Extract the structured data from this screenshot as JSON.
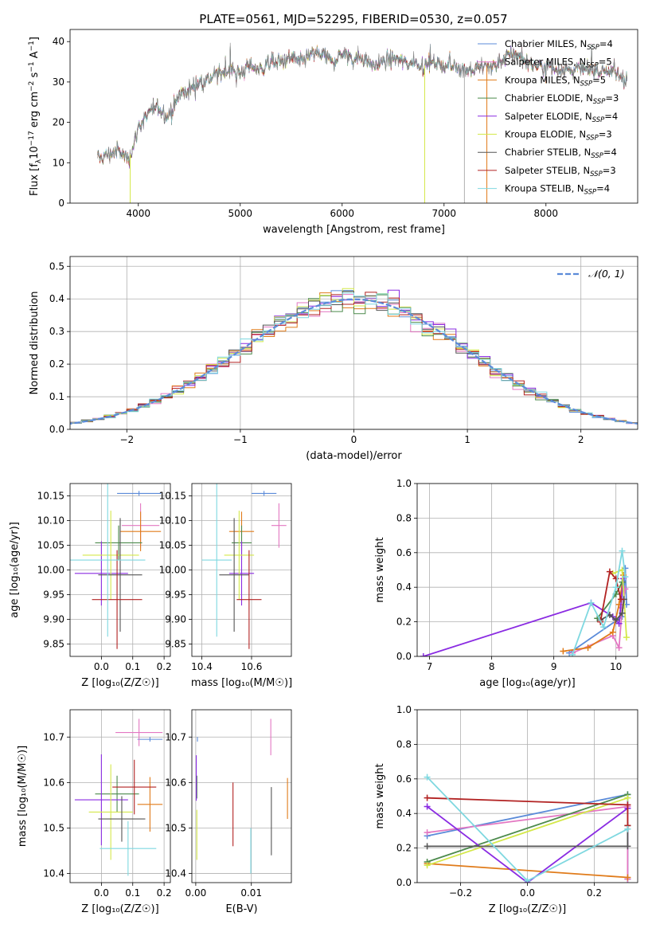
{
  "figure_title": "PLATE=0561, MJD=52295, FIBERID=0530, z=0.057",
  "colors": {
    "Chabrier MILES": "#5b8bd9",
    "Salpeter MILES": "#e377c2",
    "Kroupa MILES": "#e07b1a",
    "Chabrier ELODIE": "#4c8a4c",
    "Salpeter ELODIE": "#8a2be2",
    "Kroupa ELODIE": "#d4e84a",
    "Chabrier STELIB": "#555555",
    "Salpeter STELIB": "#b22222",
    "Kroupa STELIB": "#7fd8e0",
    "normal": "#5b8bd9"
  },
  "chart_data": [
    {
      "id": "spectrum",
      "type": "line",
      "title": "PLATE=0561, MJD=52295, FIBERID=0530, z=0.057",
      "xlabel": "wavelength [Angstrom, rest frame]",
      "ylabel_parts": [
        "Flux [f",
        "λ",
        "10",
        "−17",
        " erg cm",
        "−2",
        " s",
        "−1",
        " A",
        "−1",
        "]"
      ],
      "xlim": [
        3330,
        8900
      ],
      "ylim": [
        0,
        43
      ],
      "xticks": [
        4000,
        5000,
        6000,
        7000,
        8000
      ],
      "yticks": [
        0,
        10,
        20,
        30,
        40
      ],
      "legend_position": "upper right",
      "legend": [
        {
          "label": "Chabrier MILES, N",
          "sub": "SSP",
          "suffix": "=4"
        },
        {
          "label": "Salpeter MILES, N",
          "sub": "SSP",
          "suffix": "=5"
        },
        {
          "label": "Kroupa MILES, N",
          "sub": "SSP",
          "suffix": "=5"
        },
        {
          "label": "Chabrier ELODIE, N",
          "sub": "SSP",
          "suffix": "=3"
        },
        {
          "label": "Salpeter ELODIE, N",
          "sub": "SSP",
          "suffix": "=4"
        },
        {
          "label": "Kroupa ELODIE, N",
          "sub": "SSP",
          "suffix": "=3"
        },
        {
          "label": "Chabrier STELIB, N",
          "sub": "SSP",
          "suffix": "=4"
        },
        {
          "label": "Salpeter STELIB, N",
          "sub": "SSP",
          "suffix": "=3"
        },
        {
          "label": "Kroupa STELIB, N",
          "sub": "SSP",
          "suffix": "=4"
        }
      ],
      "continuum": {
        "wavelength": [
          3600,
          3700,
          3800,
          3900,
          3950,
          4000,
          4100,
          4200,
          4300,
          4400,
          4500,
          4600,
          4700,
          4800,
          4900,
          5000,
          5100,
          5200,
          5300,
          5400,
          5500,
          5600,
          5700,
          5800,
          5900,
          6000,
          6100,
          6200,
          6300,
          6400,
          6500,
          6600,
          6700,
          6800,
          6900,
          7000,
          7100,
          7200,
          7300,
          7400,
          7500,
          7600,
          7700,
          7800,
          7900,
          8000,
          8100,
          8200,
          8300,
          8400,
          8500,
          8600,
          8700,
          8800
        ],
        "flux": [
          11,
          12,
          13,
          11,
          14,
          19,
          22,
          24,
          21,
          27,
          28,
          30,
          31,
          32,
          33,
          32,
          34,
          33,
          35,
          35,
          36,
          35,
          37,
          37,
          35,
          37,
          36,
          36,
          34,
          35,
          36,
          35,
          35,
          34,
          35,
          34,
          34,
          33,
          33,
          34,
          34,
          36,
          37,
          35,
          34,
          34,
          33,
          33,
          33,
          33,
          33,
          33,
          32,
          31
        ]
      },
      "dropouts": [
        {
          "x": 3920,
          "y": 0
        },
        {
          "x": 6810,
          "y": 0
        },
        {
          "x": 7200,
          "y": 0
        },
        {
          "x": 7420,
          "y": 0
        }
      ]
    },
    {
      "id": "residuals",
      "type": "histogram",
      "xlabel": "(data-model)/error",
      "ylabel": "Normed distribution",
      "xlim": [
        -2.5,
        2.5
      ],
      "ylim": [
        0,
        0.53
      ],
      "xticks": [
        -2,
        -1,
        0,
        1,
        2
      ],
      "yticks": [
        0,
        0.1,
        0.2,
        0.3,
        0.4,
        0.5
      ],
      "grid": true,
      "legend_position": "upper right",
      "legend_label": "𝒩(0, 1)",
      "bin_width": 0.1
    },
    {
      "id": "age_vs_Z",
      "type": "errorbar",
      "xlabel": "Z [log₁₀(Z/Z☉)]",
      "ylabel": "age  [log₁₀(age/yr)]",
      "xlim": [
        -0.1,
        0.22
      ],
      "ylim": [
        9.825,
        10.175
      ],
      "xticks": [
        0.0,
        0.1,
        0.2
      ],
      "yticks": [
        9.85,
        9.9,
        9.95,
        10.0,
        10.05,
        10.1,
        10.15
      ],
      "grid": true,
      "points": [
        {
          "series": "Chabrier MILES",
          "x": 0.12,
          "xerr": 0.07,
          "y": 10.155,
          "yerr": 0.005
        },
        {
          "series": "Salpeter MILES",
          "x": 0.125,
          "xerr": 0.06,
          "y": 10.09,
          "yerr": 0.045
        },
        {
          "series": "Kroupa MILES",
          "x": 0.125,
          "xerr": 0.065,
          "y": 10.078,
          "yerr": 0.04
        },
        {
          "series": "Chabrier ELODIE",
          "x": 0.055,
          "xerr": 0.075,
          "y": 10.055,
          "yerr": 0.035
        },
        {
          "series": "Salpeter ELODIE",
          "x": 0.0,
          "xerr": 0.085,
          "y": 9.993,
          "yerr": 0.065
        },
        {
          "series": "Kroupa ELODIE",
          "x": 0.03,
          "xerr": 0.09,
          "y": 10.03,
          "yerr": 0.09
        },
        {
          "series": "Chabrier STELIB",
          "x": 0.06,
          "xerr": 0.07,
          "y": 9.99,
          "yerr": 0.115
        },
        {
          "series": "Salpeter STELIB",
          "x": 0.05,
          "xerr": 0.08,
          "y": 9.94,
          "yerr": 0.1
        },
        {
          "series": "Kroupa STELIB",
          "x": 0.02,
          "xerr": 0.12,
          "y": 10.02,
          "yerr": 0.155
        }
      ]
    },
    {
      "id": "age_vs_mass",
      "type": "errorbar",
      "xlabel": "mass [log₁₀(M/M☉)]",
      "xlim": [
        10.36,
        10.76
      ],
      "ylim": [
        9.825,
        10.175
      ],
      "xticks": [
        10.4,
        10.6
      ],
      "yticks": [
        9.85,
        9.9,
        9.95,
        10.0,
        10.05,
        10.1,
        10.15
      ],
      "grid": true,
      "points": [
        {
          "series": "Chabrier MILES",
          "x": 10.65,
          "xerr": 0.05,
          "y": 10.155,
          "yerr": 0.005
        },
        {
          "series": "Salpeter MILES",
          "x": 10.71,
          "xerr": 0.03,
          "y": 10.09,
          "yerr": 0.045
        },
        {
          "series": "Kroupa MILES",
          "x": 10.56,
          "xerr": 0.05,
          "y": 10.078,
          "yerr": 0.04
        },
        {
          "series": "Chabrier ELODIE",
          "x": 10.56,
          "xerr": 0.04,
          "y": 10.055,
          "yerr": 0.035
        },
        {
          "series": "Salpeter ELODIE",
          "x": 10.56,
          "xerr": 0.05,
          "y": 9.993,
          "yerr": 0.065
        },
        {
          "series": "Kroupa ELODIE",
          "x": 10.55,
          "xerr": 0.06,
          "y": 10.03,
          "yerr": 0.09
        },
        {
          "series": "Chabrier STELIB",
          "x": 10.53,
          "xerr": 0.06,
          "y": 9.99,
          "yerr": 0.115
        },
        {
          "series": "Salpeter STELIB",
          "x": 10.59,
          "xerr": 0.05,
          "y": 9.94,
          "yerr": 0.1
        },
        {
          "series": "Kroupa STELIB",
          "x": 10.46,
          "xerr": 0.06,
          "y": 10.02,
          "yerr": 0.155
        }
      ]
    },
    {
      "id": "mass_weight_vs_age",
      "type": "line",
      "xlabel": "age  [log₁₀(age/yr)]",
      "ylabel": "mass weight",
      "xlim": [
        6.8,
        10.35
      ],
      "ylim": [
        0,
        1
      ],
      "xticks": [
        7,
        8,
        9,
        10
      ],
      "yticks": [
        0,
        0.2,
        0.4,
        0.6,
        0.8,
        1.0
      ],
      "grid": true,
      "series": [
        {
          "name": "Chabrier MILES",
          "x": [
            9.25,
            10.1,
            10.15,
            10.17
          ],
          "y": [
            0.02,
            0.23,
            0.51,
            0.3
          ]
        },
        {
          "name": "Salpeter MILES",
          "x": [
            9.3,
            9.95,
            10.05,
            10.1,
            10.15
          ],
          "y": [
            0.02,
            0.12,
            0.05,
            0.28,
            0.39
          ]
        },
        {
          "name": "Kroupa MILES",
          "x": [
            9.15,
            9.55,
            9.95,
            10.05,
            10.12
          ],
          "y": [
            0.03,
            0.05,
            0.14,
            0.3,
            0.47
          ]
        },
        {
          "name": "Chabrier ELODIE",
          "x": [
            9.7,
            10.0,
            10.1
          ],
          "y": [
            0.22,
            0.36,
            0.43
          ]
        },
        {
          "name": "Salpeter ELODIE",
          "x": [
            6.9,
            9.6,
            9.95,
            10.05,
            10.12
          ],
          "y": [
            0.0,
            0.31,
            0.23,
            0.19,
            0.45
          ]
        },
        {
          "name": "Kroupa ELODIE",
          "x": [
            9.95,
            10.1,
            10.17
          ],
          "y": [
            0.48,
            0.5,
            0.11
          ]
        },
        {
          "name": "Chabrier STELIB",
          "x": [
            9.75,
            9.9,
            10.0,
            10.1,
            10.13
          ],
          "y": [
            0.21,
            0.24,
            0.21,
            0.25,
            0.33
          ]
        },
        {
          "name": "Salpeter STELIB",
          "x": [
            9.75,
            9.9,
            10.0,
            10.08
          ],
          "y": [
            0.2,
            0.49,
            0.45,
            0.33
          ]
        },
        {
          "name": "Kroupa STELIB",
          "x": [
            9.3,
            9.6,
            9.8,
            10.0,
            10.1,
            10.15
          ],
          "y": [
            0.01,
            0.31,
            0.17,
            0.4,
            0.61,
            0.46
          ]
        }
      ]
    },
    {
      "id": "mass_vs_Z",
      "type": "errorbar",
      "xlabel": "Z [log₁₀(Z/Z☉)]",
      "ylabel": "mass [log₁₀(M/M☉)]",
      "xlim": [
        -0.1,
        0.22
      ],
      "ylim": [
        10.38,
        10.76
      ],
      "xticks": [
        0.0,
        0.1,
        0.2
      ],
      "yticks": [
        10.4,
        10.5,
        10.6,
        10.7
      ],
      "grid": true,
      "points": [
        {
          "series": "Chabrier MILES",
          "x": 0.155,
          "xerr": 0.04,
          "y": 10.695,
          "yerr": 0.005
        },
        {
          "series": "Salpeter MILES",
          "x": 0.12,
          "xerr": 0.075,
          "y": 10.71,
          "yerr": 0.03
        },
        {
          "series": "Kroupa MILES",
          "x": 0.155,
          "xerr": 0.04,
          "y": 10.552,
          "yerr": 0.06
        },
        {
          "series": "Chabrier ELODIE",
          "x": 0.05,
          "xerr": 0.07,
          "y": 10.575,
          "yerr": 0.04
        },
        {
          "series": "Salpeter ELODIE",
          "x": 0.0,
          "xerr": 0.085,
          "y": 10.562,
          "yerr": 0.1
        },
        {
          "series": "Kroupa ELODIE",
          "x": 0.03,
          "xerr": 0.07,
          "y": 10.535,
          "yerr": 0.105
        },
        {
          "series": "Chabrier STELIB",
          "x": 0.065,
          "xerr": 0.075,
          "y": 10.52,
          "yerr": 0.05
        },
        {
          "series": "Salpeter STELIB",
          "x": 0.105,
          "xerr": 0.07,
          "y": 10.59,
          "yerr": 0.06
        },
        {
          "series": "Kroupa STELIB",
          "x": 0.085,
          "xerr": 0.09,
          "y": 10.455,
          "yerr": 0.06
        }
      ]
    },
    {
      "id": "mass_vs_EBV",
      "type": "errorbar",
      "xlabel": "E(B-V)",
      "xlim": [
        -0.0007,
        0.0172
      ],
      "ylim": [
        10.38,
        10.76
      ],
      "xticks": [
        0.0,
        0.01
      ],
      "yticks": [
        10.4,
        10.5,
        10.6,
        10.7
      ],
      "grid": true,
      "points": [
        {
          "series": "Chabrier MILES",
          "x": 0.0003,
          "xerr": 0,
          "y": 10.695,
          "yerr": 0.005
        },
        {
          "series": "Salpeter MILES",
          "x": 0.0135,
          "xerr": 0,
          "y": 10.7,
          "yerr": 0.04
        },
        {
          "series": "Kroupa MILES",
          "x": 0.0165,
          "xerr": 0,
          "y": 10.565,
          "yerr": 0.045
        },
        {
          "series": "Chabrier ELODIE",
          "x": 0.0002,
          "xerr": 0,
          "y": 10.59,
          "yerr": 0.025
        },
        {
          "series": "Salpeter ELODIE",
          "x": 0.0001,
          "xerr": 0,
          "y": 10.61,
          "yerr": 0.05
        },
        {
          "series": "Kroupa ELODIE",
          "x": 0.0002,
          "xerr": 0,
          "y": 10.485,
          "yerr": 0.055
        },
        {
          "series": "Chabrier STELIB",
          "x": 0.0136,
          "xerr": 0,
          "y": 10.515,
          "yerr": 0.075
        },
        {
          "series": "Salpeter STELIB",
          "x": 0.0067,
          "xerr": 0,
          "y": 10.53,
          "yerr": 0.07
        },
        {
          "series": "Kroupa STELIB",
          "x": 0.0099,
          "xerr": 0,
          "y": 10.45,
          "yerr": 0.05
        }
      ]
    },
    {
      "id": "mass_weight_vs_Z",
      "type": "line",
      "xlabel": "Z [log₁₀(Z/Z☉)]",
      "ylabel": "mass weight",
      "xlim": [
        -0.33,
        0.33
      ],
      "ylim": [
        0,
        1
      ],
      "xticks": [
        -0.2,
        0.0,
        0.2
      ],
      "yticks": [
        0,
        0.2,
        0.4,
        0.6,
        0.8,
        1.0
      ],
      "grid": true,
      "series": [
        {
          "name": "Chabrier MILES",
          "x": [
            -0.3,
            0.3,
            0.3
          ],
          "y": [
            0.27,
            0.51,
            0.02
          ]
        },
        {
          "name": "Salpeter MILES",
          "x": [
            -0.3,
            0.3,
            0.3
          ],
          "y": [
            0.29,
            0.44,
            0.02
          ]
        },
        {
          "name": "Kroupa MILES",
          "x": [
            -0.3,
            0.3
          ],
          "y": [
            0.11,
            0.03
          ]
        },
        {
          "name": "Chabrier ELODIE",
          "x": [
            -0.3,
            0.3
          ],
          "y": [
            0.12,
            0.51
          ]
        },
        {
          "name": "Salpeter ELODIE",
          "x": [
            -0.3,
            0.0,
            0.3
          ],
          "y": [
            0.44,
            0.0,
            0.43
          ]
        },
        {
          "name": "Kroupa ELODIE",
          "x": [
            -0.3,
            0.3
          ],
          "y": [
            0.1,
            0.49
          ]
        },
        {
          "name": "Chabrier STELIB",
          "x": [
            -0.3,
            0.3,
            0.3
          ],
          "y": [
            0.21,
            0.21,
            0.33
          ]
        },
        {
          "name": "Salpeter STELIB",
          "x": [
            -0.3,
            0.3,
            0.3
          ],
          "y": [
            0.49,
            0.45,
            0.33
          ]
        },
        {
          "name": "Kroupa STELIB",
          "x": [
            -0.3,
            0.0,
            0.3
          ],
          "y": [
            0.61,
            0.01,
            0.31
          ]
        }
      ]
    }
  ]
}
